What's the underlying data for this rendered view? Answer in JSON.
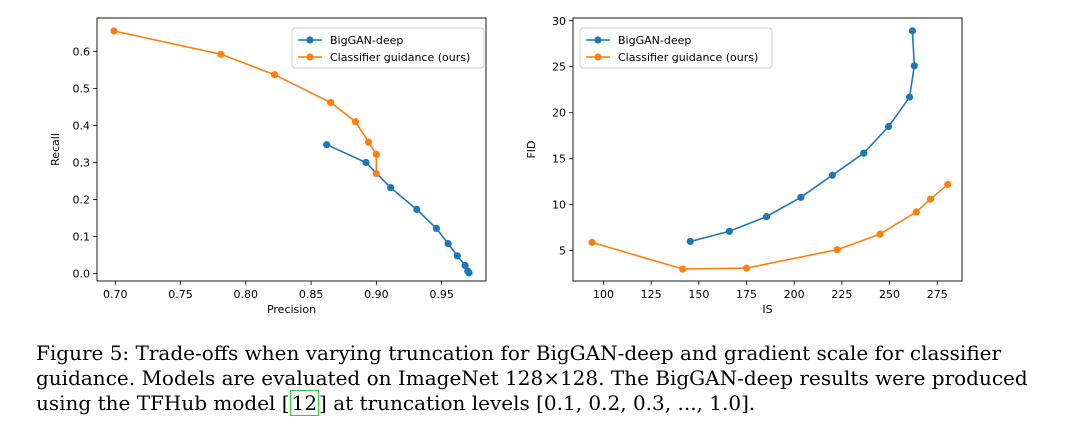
{
  "charts": [
    {
      "type": "line",
      "xlabel": "Precision",
      "ylabel": "Recall",
      "xlim": [
        0.686,
        0.984
      ],
      "ylim": [
        -0.02,
        0.69
      ],
      "xticks": [
        "0.70",
        "0.75",
        "0.80",
        "0.85",
        "0.90",
        "0.95"
      ],
      "xtick_values": [
        0.7,
        0.75,
        0.8,
        0.85,
        0.9,
        0.95
      ],
      "yticks": [
        "0.0",
        "0.1",
        "0.2",
        "0.3",
        "0.4",
        "0.5",
        "0.6"
      ],
      "ytick_values": [
        0.0,
        0.1,
        0.2,
        0.3,
        0.4,
        0.5,
        0.6
      ],
      "legend_position": "top-right",
      "series": [
        {
          "name": "BigGAN-deep",
          "color": "#1f77b4",
          "x": [
            0.862,
            0.892,
            0.911,
            0.931,
            0.946,
            0.955,
            0.962,
            0.968,
            0.97,
            0.971
          ],
          "y": [
            0.348,
            0.3,
            0.232,
            0.173,
            0.122,
            0.081,
            0.048,
            0.022,
            0.007,
            0.002
          ]
        },
        {
          "name": "Classifier guidance (ours)",
          "color": "#ff7f0e",
          "x": [
            0.699,
            0.781,
            0.822,
            0.865,
            0.884,
            0.894,
            0.9,
            0.9
          ],
          "y": [
            0.655,
            0.592,
            0.537,
            0.462,
            0.41,
            0.355,
            0.322,
            0.27
          ]
        }
      ]
    },
    {
      "type": "line",
      "xlabel": "IS",
      "ylabel": "FID",
      "xlim": [
        84,
        288
      ],
      "ylim": [
        1.7,
        30.3
      ],
      "xticks": [
        "100",
        "125",
        "150",
        "175",
        "200",
        "225",
        "250",
        "275"
      ],
      "xtick_values": [
        100,
        125,
        150,
        175,
        200,
        225,
        250,
        275
      ],
      "yticks": [
        "5",
        "10",
        "15",
        "20",
        "25",
        "30"
      ],
      "ytick_values": [
        5,
        10,
        15,
        20,
        25,
        30
      ],
      "legend_position": "top-left",
      "series": [
        {
          "name": "BigGAN-deep",
          "color": "#1f77b4",
          "x": [
            145.5,
            166.0,
            185.5,
            203.5,
            220.0,
            236.5,
            249.5,
            260.5,
            263.0,
            262.0
          ],
          "y": [
            6.0,
            7.1,
            8.7,
            10.8,
            13.2,
            15.6,
            18.5,
            21.7,
            25.1,
            28.9
          ]
        },
        {
          "name": "Classifier guidance (ours)",
          "color": "#ff7f0e",
          "x": [
            94.0,
            141.5,
            175.0,
            222.5,
            245.0,
            264.0,
            271.5,
            280.5
          ],
          "y": [
            5.9,
            3.0,
            3.1,
            5.1,
            6.8,
            9.2,
            10.6,
            12.2
          ]
        }
      ]
    }
  ],
  "caption": {
    "line1": "Figure 5:  Trade-offs when varying truncation for BigGAN-deep and gradient scale for classifier",
    "line2": "guidance. Models are evaluated on ImageNet 128×128. The BigGAN-deep results were produced",
    "line3_pre": "using the TFHub model [",
    "ref": "12",
    "line3_post": "] at truncation levels [0.1, 0.2, 0.3, ..., 1.0]."
  }
}
